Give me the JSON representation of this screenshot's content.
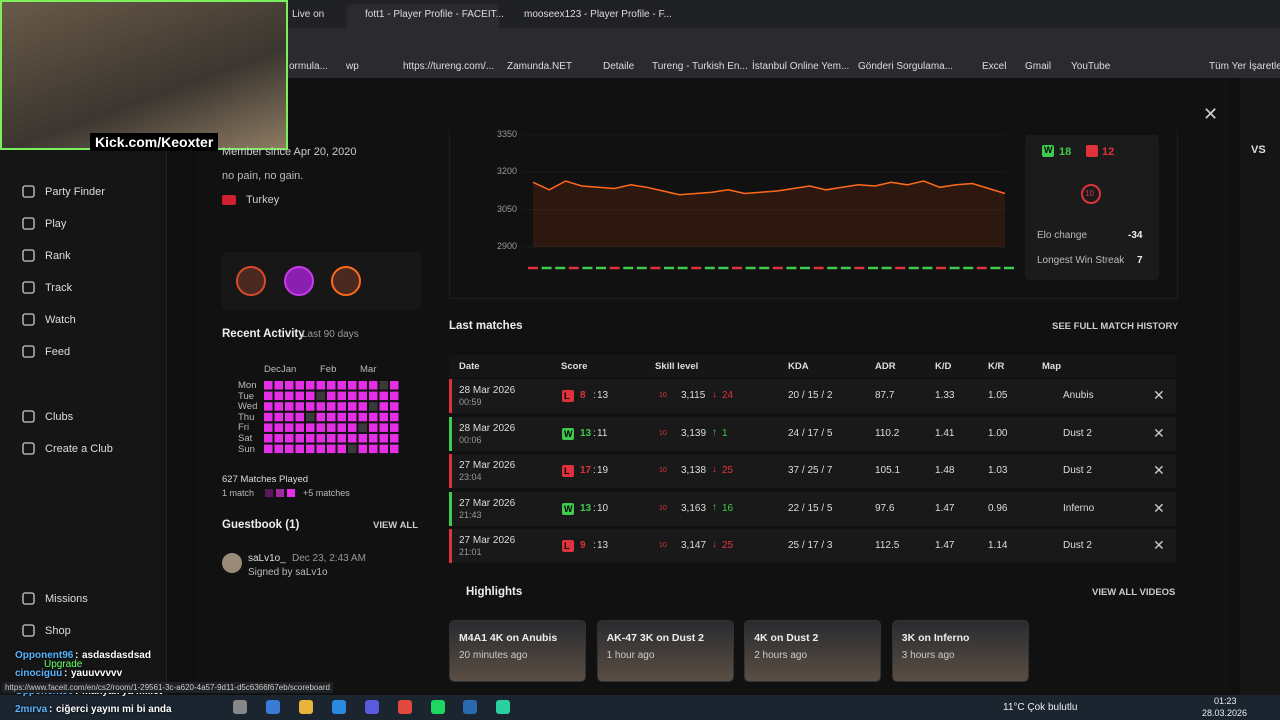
{
  "browser": {
    "tabs": [
      "Live on",
      "fott1 - Player Profile - FACEIT...",
      "mooseex123 - Player Profile - F..."
    ],
    "bookmarks": [
      "ormula...",
      "wp",
      "https://tureng.com/...",
      "Zamunda.NET",
      "Detaile",
      "Tureng - Turkish En...",
      "İstanbul Online Yem...",
      "Gönderi Sorgulama...",
      "Excel",
      "Gmail",
      "YouTube"
    ],
    "all_bookmarks": "Tüm Yer İşaretleri",
    "status_url": "https://www.faceit.com/en/cs2/room/1-29561-3c-a620-4a57-9d11-d5c6366f67eb/scoreboard"
  },
  "stream": {
    "overlay": "Kick.com/Keoxter",
    "badge": "Upgrade",
    "chat": [
      {
        "user": "Opponent96",
        "message": "asdasdasdsad"
      },
      {
        "user": "cinociguu",
        "message": "yauuvvvvv"
      },
      {
        "user": "Opponent96",
        "message": "manyak ya millet"
      },
      {
        "user": "2mırva",
        "message": "ciğerci yayını mi bi anda"
      }
    ]
  },
  "sidebar": {
    "nav": [
      "Party Finder",
      "Play",
      "Rank",
      "Track",
      "Watch",
      "Feed"
    ],
    "clubs": [
      "Clubs",
      "Create a Club"
    ],
    "bottom": [
      "Missions",
      "Shop"
    ]
  },
  "profile": {
    "member_since": "Member since Apr 20, 2020",
    "bio": "no pain, no gain.",
    "country": "Turkey"
  },
  "activity": {
    "title": "Recent Activity",
    "period": "Last 90 days",
    "months": [
      "Dec",
      "Jan",
      "Feb",
      "Mar"
    ],
    "days": [
      "Mon",
      "Tue",
      "Wed",
      "Thu",
      "Fri",
      "Sat",
      "Sun"
    ],
    "matches_played": "627 Matches Played",
    "legend_min": "1 match",
    "legend_max": "+5 matches"
  },
  "guestbook": {
    "title": "Guestbook (1)",
    "view_all": "VIEW ALL",
    "user": "saLv1o_",
    "date": "Dec 23, 2:43 AM",
    "text": "Signed by saLv1o"
  },
  "elo_chart": {
    "ylim": [
      2900,
      3350
    ],
    "yticks": [
      3350,
      3200,
      3050,
      2900
    ],
    "values": [
      3160,
      3130,
      3165,
      3145,
      3140,
      3135,
      3150,
      3140,
      3125,
      3110,
      3115,
      3120,
      3130,
      3115,
      3120,
      3125,
      3135,
      3145,
      3130,
      3140,
      3150,
      3145,
      3160,
      3150,
      3165,
      3140,
      3150,
      3155,
      3135,
      3115
    ]
  },
  "stats": {
    "win_letter": "W",
    "wins": "18",
    "losses": "12",
    "level": "10",
    "elo_change_label": "Elo change",
    "elo_change": "-34",
    "streak_label": "Longest Win Streak",
    "streak": "7"
  },
  "matches": {
    "title": "Last matches",
    "history_link": "SEE FULL MATCH HISTORY",
    "headers": [
      "Date",
      "Score",
      "Skill level",
      "KDA",
      "ADR",
      "K/D",
      "K/R",
      "Map"
    ],
    "rows": [
      {
        "date": "28 Mar 2026",
        "time": "00:59",
        "result": "L",
        "score": [
          "8",
          "13"
        ],
        "level": "10",
        "elo": "3,115",
        "change": "24",
        "kda": "20 / 15 / 2",
        "adr": "87.7",
        "kd": "1.33",
        "kr": "1.05",
        "map": "Anubis"
      },
      {
        "date": "28 Mar 2026",
        "time": "00:06",
        "result": "W",
        "score": [
          "13",
          "11"
        ],
        "level": "10",
        "elo": "3,139",
        "change": "1",
        "kda": "24 / 17 / 5",
        "adr": "110.2",
        "kd": "1.41",
        "kr": "1.00",
        "map": "Dust 2"
      },
      {
        "date": "27 Mar 2026",
        "time": "23:04",
        "result": "L",
        "score": [
          "17",
          "19"
        ],
        "level": "10",
        "elo": "3,138",
        "change": "25",
        "kda": "37 / 25 / 7",
        "adr": "105.1",
        "kd": "1.48",
        "kr": "1.03",
        "map": "Dust 2"
      },
      {
        "date": "27 Mar 2026",
        "time": "21:43",
        "result": "W",
        "score": [
          "13",
          "10"
        ],
        "level": "10",
        "elo": "3,163",
        "change": "16",
        "kda": "22 / 15 / 5",
        "adr": "97.6",
        "kd": "1.47",
        "kr": "0.96",
        "map": "Inferno"
      },
      {
        "date": "27 Mar 2026",
        "time": "21:01",
        "result": "L",
        "score": [
          "9",
          "13"
        ],
        "level": "10",
        "elo": "3,147",
        "change": "25",
        "kda": "25 / 17 / 3",
        "adr": "112.5",
        "kd": "1.47",
        "kr": "1.14",
        "map": "Dust 2"
      }
    ]
  },
  "highlights": {
    "title": "Highlights",
    "view_all": "VIEW ALL VIDEOS",
    "cards": [
      {
        "title": "M4A1 4K on Anubis",
        "ago": "20 minutes ago"
      },
      {
        "title": "AK-47 3K on Dust 2",
        "ago": "1 hour ago"
      },
      {
        "title": "4K on Dust 2",
        "ago": "2 hours ago"
      },
      {
        "title": "3K on Inferno",
        "ago": "3 hours ago"
      }
    ]
  },
  "rail": {
    "vs": "VS"
  },
  "taskbar": {
    "weather": "11°C Çok bulutlu",
    "time": "01:23",
    "date": "28.03.2026"
  }
}
